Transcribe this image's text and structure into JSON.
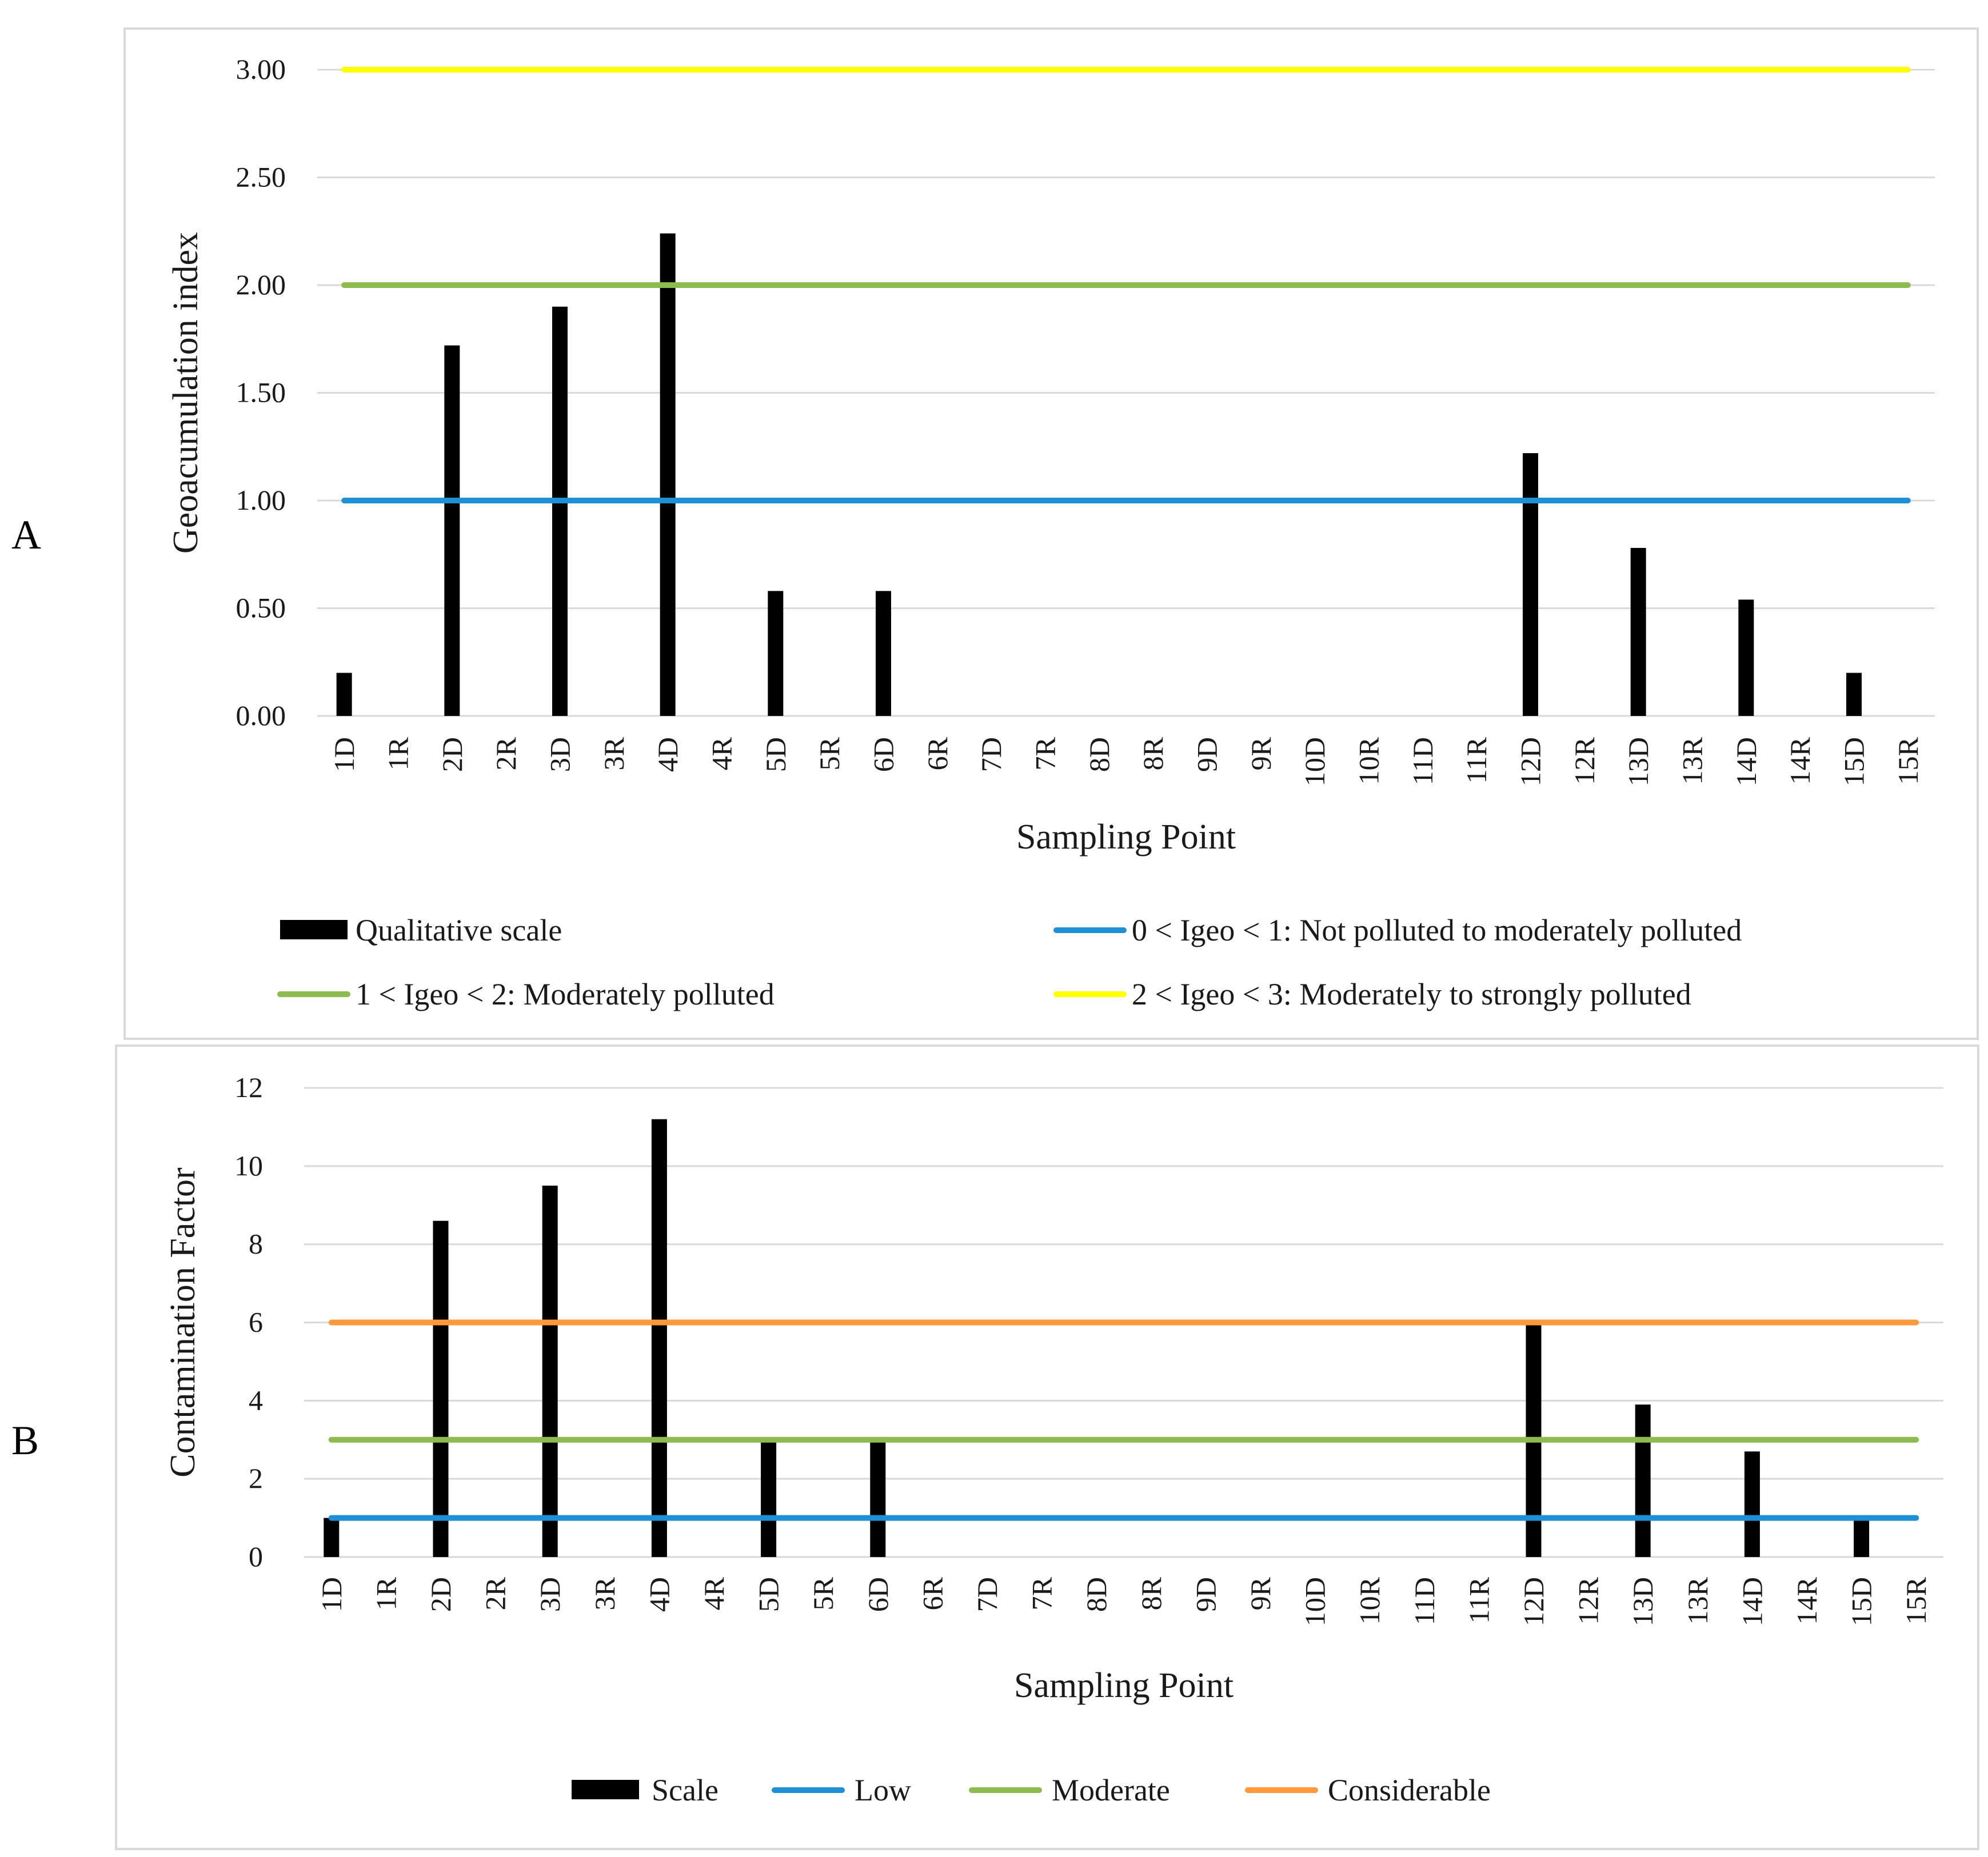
{
  "panels": {
    "a_label": "A",
    "b_label": "B"
  },
  "chart_data": [
    {
      "type": "bar",
      "title": "",
      "xlabel": "Sampling Point",
      "ylabel": "Geoacumulation index",
      "ylim": [
        0,
        3
      ],
      "ytick_step": 0.5,
      "ytick_decimals": 2,
      "grid": true,
      "legend_placement": "bottom",
      "categories": [
        "1D",
        "1R",
        "2D",
        "2R",
        "3D",
        "3R",
        "4D",
        "4R",
        "5D",
        "5R",
        "6D",
        "6R",
        "7D",
        "7R",
        "8D",
        "8R",
        "9D",
        "9R",
        "10D",
        "10R",
        "11D",
        "11R",
        "12D",
        "12R",
        "13D",
        "13R",
        "14D",
        "14R",
        "15D",
        "15R"
      ],
      "series": [
        {
          "name": "Qualitative scale",
          "kind": "bar",
          "color": "#000000",
          "values": [
            0.2,
            0,
            1.72,
            0,
            1.9,
            0,
            2.24,
            0,
            0.58,
            0,
            0.58,
            0,
            0,
            0,
            0,
            0,
            0,
            0,
            0,
            0,
            0,
            0,
            1.22,
            0,
            0.78,
            0,
            0.54,
            0,
            0.2,
            0
          ]
        },
        {
          "name": "0 < Igeo < 1: Not polluted to moderately polluted",
          "kind": "hline",
          "value": 1,
          "color": "#1f8fd6"
        },
        {
          "name": "1 < Igeo < 2:  Moderately polluted",
          "kind": "hline",
          "value": 2,
          "color": "#8dbb4f"
        },
        {
          "name": "2 < Igeo < 3: Moderately to strongly polluted",
          "kind": "hline",
          "value": 3,
          "color": "#ffff00"
        }
      ]
    },
    {
      "type": "bar",
      "title": "",
      "xlabel": "Sampling Point",
      "ylabel": "Contamination Factor",
      "ylim": [
        0,
        12
      ],
      "ytick_step": 2,
      "ytick_decimals": 0,
      "grid": true,
      "legend_placement": "bottom",
      "categories": [
        "1D",
        "1R",
        "2D",
        "2R",
        "3D",
        "3R",
        "4D",
        "4R",
        "5D",
        "5R",
        "6D",
        "6R",
        "7D",
        "7R",
        "8D",
        "8R",
        "9D",
        "9R",
        "10D",
        "10R",
        "11D",
        "11R",
        "12D",
        "12R",
        "13D",
        "13R",
        "14D",
        "14R",
        "15D",
        "15R"
      ],
      "series": [
        {
          "name": "Scale",
          "kind": "bar",
          "color": "#000000",
          "values": [
            1,
            0,
            8.6,
            0,
            9.5,
            0,
            11.2,
            0,
            3,
            0,
            3,
            0,
            0,
            0,
            0,
            0,
            0,
            0,
            0,
            0,
            0,
            0,
            6,
            0,
            3.9,
            0,
            2.7,
            0,
            1,
            0
          ]
        },
        {
          "name": "Low",
          "kind": "hline",
          "value": 1,
          "color": "#1f8fd6"
        },
        {
          "name": "Moderate",
          "kind": "hline",
          "value": 3,
          "color": "#8dbb4f"
        },
        {
          "name": "Considerable",
          "kind": "hline",
          "value": 6,
          "color": "#ff9a3c"
        }
      ]
    }
  ]
}
